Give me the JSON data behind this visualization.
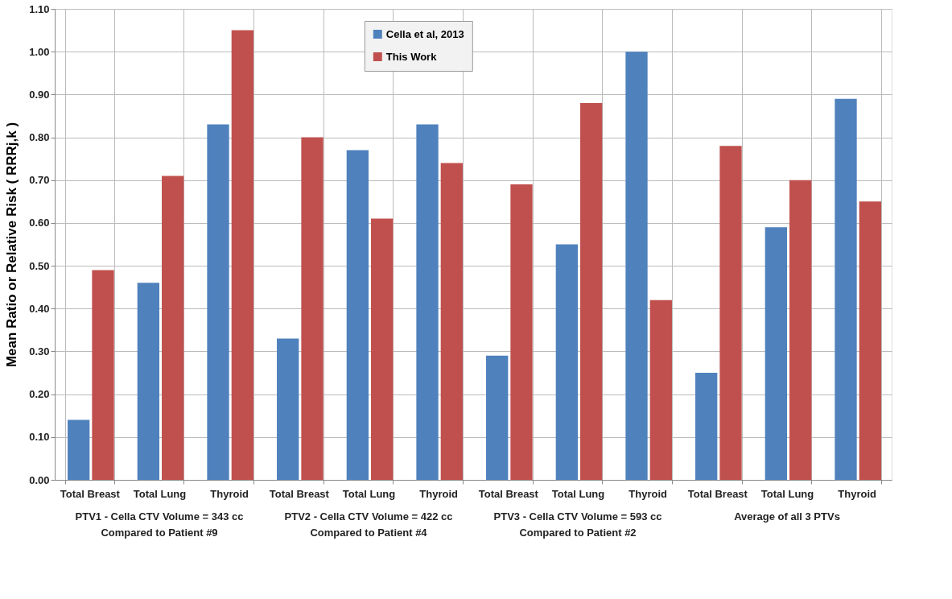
{
  "chart_data": {
    "type": "bar",
    "ylabel": "Mean Ratio or Relative Risk ( RRRj,k )",
    "categories": [
      "Total Breast",
      "Total Lung",
      "Thyroid",
      "Total Breast",
      "Total Lung",
      "Thyroid",
      "Total Breast",
      "Total Lung",
      "Thyroid",
      "Total Breast",
      "Total Lung",
      "Thyroid"
    ],
    "series": [
      {
        "name": "Cella et al, 2013",
        "color": "#4f81bd",
        "values": [
          0.14,
          0.46,
          0.83,
          0.33,
          0.77,
          0.83,
          0.29,
          0.55,
          1.0,
          0.25,
          0.59,
          0.89
        ]
      },
      {
        "name": "This Work",
        "color": "#c0504d",
        "values": [
          0.49,
          0.71,
          1.05,
          0.8,
          0.61,
          0.74,
          0.69,
          0.88,
          0.42,
          0.78,
          0.7,
          0.65
        ]
      }
    ],
    "ylim": [
      0,
      1.1
    ],
    "yticks": [
      {
        "value": 0,
        "label": "0.00"
      },
      {
        "value": 0.1,
        "label": "0.10"
      },
      {
        "value": 0.2,
        "label": "0.20"
      },
      {
        "value": 0.3,
        "label": "0.30"
      },
      {
        "value": 0.4,
        "label": "0.40"
      },
      {
        "value": 0.5,
        "label": "0.50"
      },
      {
        "value": 0.6,
        "label": "0.60"
      },
      {
        "value": 0.7,
        "label": "0.70"
      },
      {
        "value": 0.8,
        "label": "0.80"
      },
      {
        "value": 0.9,
        "label": "0.90"
      },
      {
        "value": 1.0,
        "label": "1.00"
      },
      {
        "value": 1.1,
        "label": "1.10"
      }
    ],
    "annotations": [
      "PTV1 - Cella CTV Volume = 343 cc\nCompared to Patient #9",
      "PTV2 - Cella CTV Volume = 422 cc\nCompared to Patient #4",
      "PTV3 - Cella CTV Volume = 593 cc\nCompared to Patient #2",
      "Average of all 3 PTVs"
    ],
    "grid": true,
    "legend": "top"
  }
}
